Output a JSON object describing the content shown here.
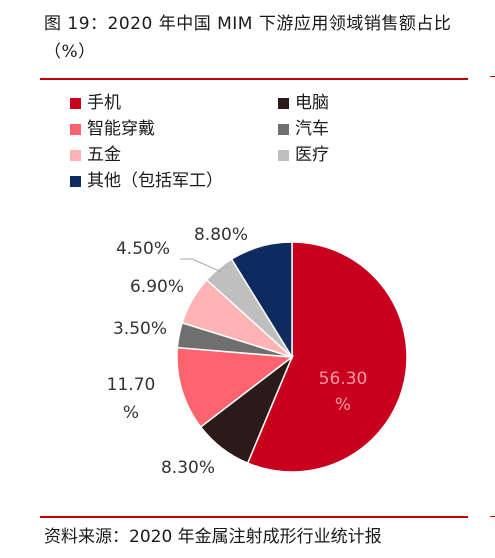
{
  "title": "图 19：2020 年中国 MIM 下游应用领域销售额占比（%）",
  "source": "资料来源：2020 年金属注射成形行业统计报",
  "colors": {
    "rule": "#c00000"
  },
  "chart_data": {
    "type": "pie",
    "legend_placement": "top-left",
    "slices": [
      {
        "name": "手机",
        "value": 56.3,
        "color": "#c8001e",
        "label_lines": [
          "56.30",
          "%"
        ]
      },
      {
        "name": "电脑",
        "value": 8.3,
        "color": "#2b1a17",
        "label_lines": [
          "8.30%"
        ]
      },
      {
        "name": "智能穿戴",
        "value": 11.7,
        "color": "#ff6370",
        "label_lines": [
          "11.70",
          "%"
        ]
      },
      {
        "name": "汽车",
        "value": 3.5,
        "color": "#6f6f6f",
        "label_lines": [
          "3.50%"
        ]
      },
      {
        "name": "五金",
        "value": 6.9,
        "color": "#ffb3b3",
        "label_lines": [
          "6.90%"
        ]
      },
      {
        "name": "医疗",
        "value": 4.5,
        "color": "#bfbfbf",
        "label_lines": [
          "4.50%"
        ]
      },
      {
        "name": "其他（包括军工）",
        "value": 8.8,
        "color": "#0d2b5e",
        "label_lines": [
          "8.80%"
        ]
      }
    ]
  }
}
